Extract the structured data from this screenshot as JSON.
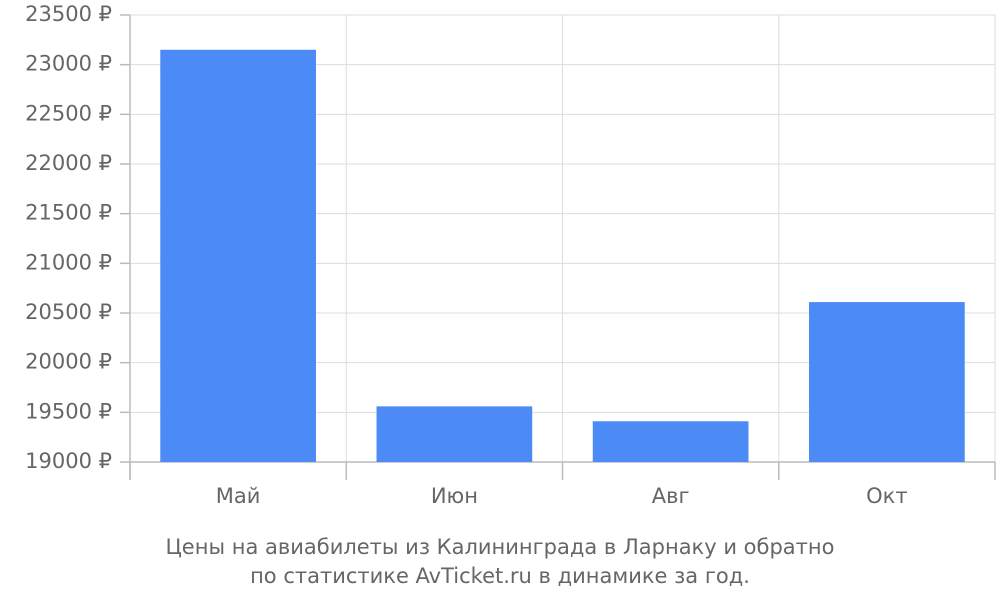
{
  "chart_data": {
    "type": "bar",
    "caption": [
      "Цены на авиабилеты из Калининграда в Ларнаку и обратно",
      "по статистике AvTicket.ru в динамике за год."
    ],
    "categories": [
      "Май",
      "Июн",
      "Авг",
      "Окт"
    ],
    "values": [
      23150,
      19560,
      19410,
      20610
    ],
    "color": "#4c8bf5",
    "ylim": [
      19000,
      23500
    ],
    "yticks": [
      {
        "value": 19000,
        "label": "19000 ₽"
      },
      {
        "value": 19500,
        "label": "19500 ₽"
      },
      {
        "value": 20000,
        "label": "20000 ₽"
      },
      {
        "value": 20500,
        "label": "20500 ₽"
      },
      {
        "value": 21000,
        "label": "21000 ₽"
      },
      {
        "value": 21500,
        "label": "21500 ₽"
      },
      {
        "value": 22000,
        "label": "22000 ₽"
      },
      {
        "value": 22500,
        "label": "22500 ₽"
      },
      {
        "value": 23000,
        "label": "23000 ₽"
      },
      {
        "value": 23500,
        "label": "23500 ₽"
      }
    ],
    "grid": true
  }
}
